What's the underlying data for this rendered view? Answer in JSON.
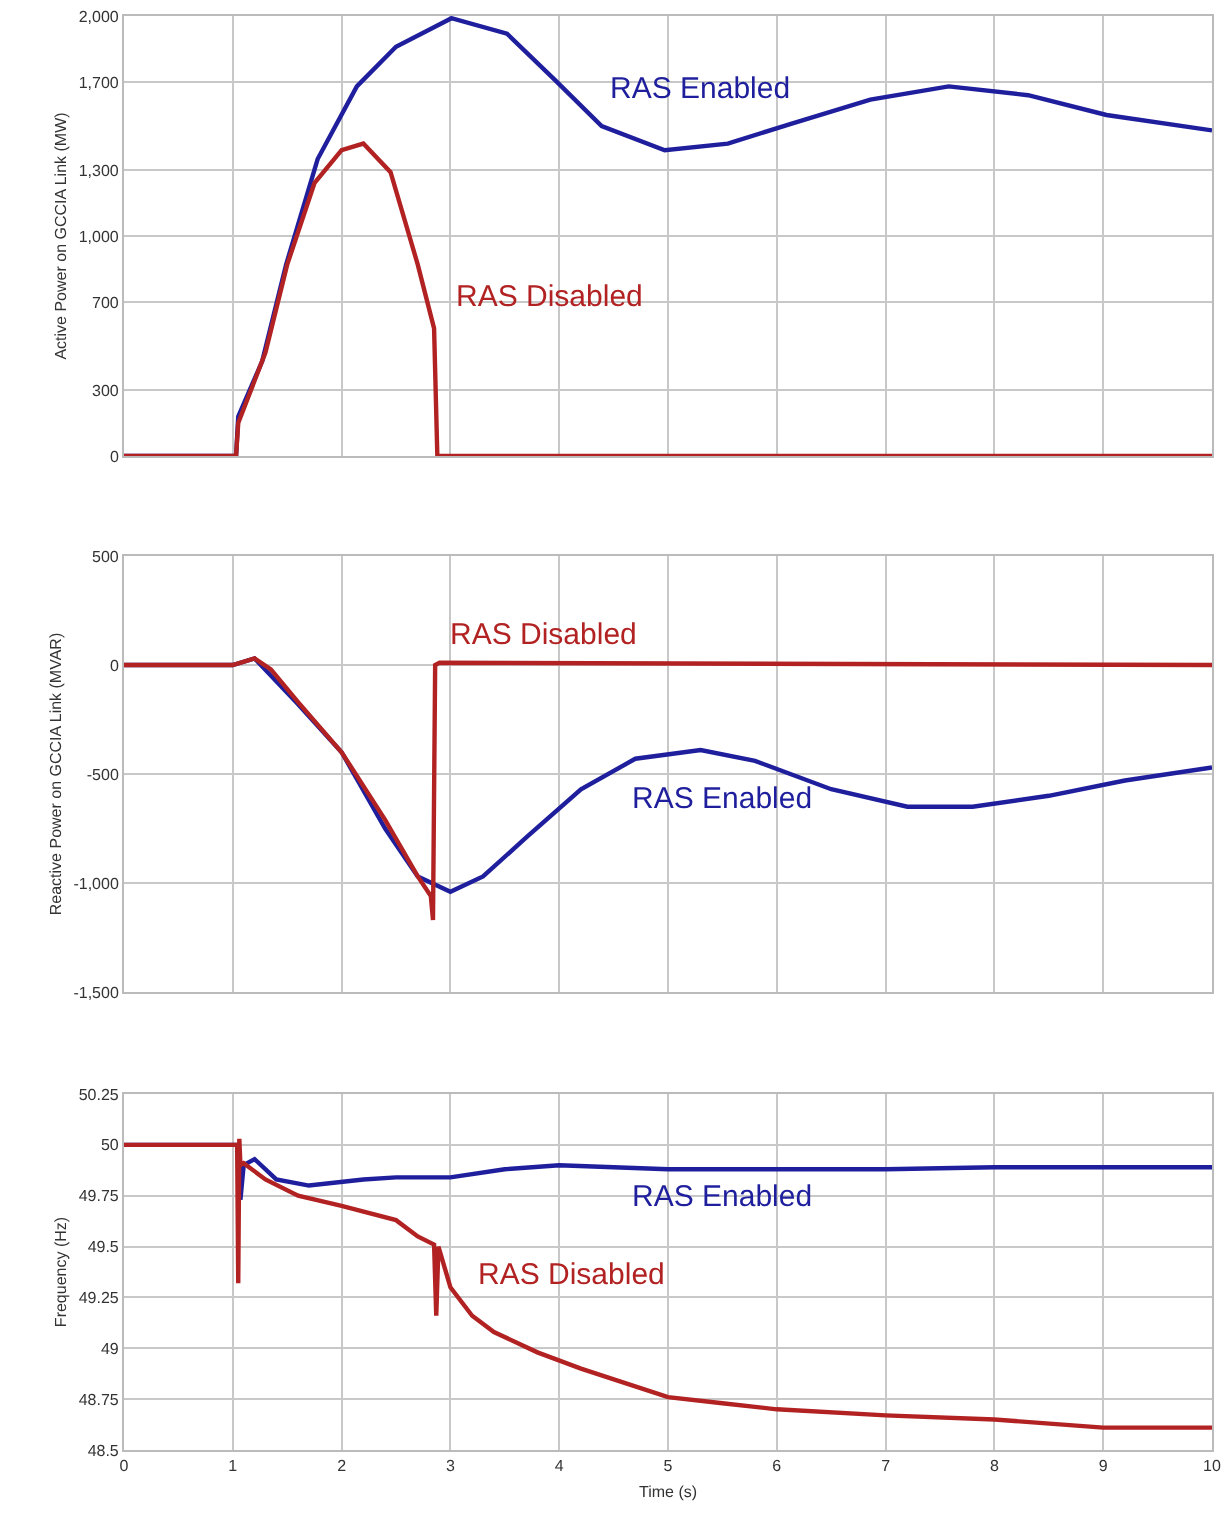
{
  "chart_data": [
    {
      "type": "line",
      "ylabel": "Active Power on GCCIA Link (MW)",
      "xlim": [
        0,
        10
      ],
      "xticks": [
        0,
        1,
        2,
        3,
        4,
        5,
        6,
        7,
        8,
        9,
        10
      ],
      "ylim": [
        0,
        2000
      ],
      "yticks": [
        0,
        300,
        700,
        {
          "value": 1000,
          "label": "1,000"
        },
        {
          "value": 1300,
          "label": "1,300"
        },
        {
          "value": 1700,
          "label": "1,700"
        },
        {
          "value": 2000,
          "label": "2,000"
        }
      ],
      "tick_labels": "y",
      "grid": true,
      "legend": false,
      "series": [
        {
          "name": "RAS Enabled",
          "color": "#1f1f9e",
          "x": [
            0,
            1.03,
            1.05,
            1.27,
            1.49,
            1.78,
            2.14,
            2.5,
            3.01,
            3.52,
            3.96,
            4.39,
            4.97,
            5.55,
            6.13,
            6.86,
            7.58,
            8.31,
            9.03,
            10
          ],
          "values": [
            0,
            0,
            180,
            430,
            870,
            1350,
            1680,
            1860,
            1990,
            1920,
            1710,
            1500,
            1390,
            1420,
            1510,
            1620,
            1680,
            1640,
            1550,
            1480
          ]
        },
        {
          "name": "RAS Disabled",
          "color": "#b22222",
          "x": [
            0,
            1.03,
            1.05,
            1.3,
            1.5,
            1.75,
            2.0,
            2.2,
            2.45,
            2.7,
            2.85,
            2.88,
            10
          ],
          "values": [
            0,
            0,
            150,
            470,
            870,
            1240,
            1390,
            1420,
            1290,
            870,
            580,
            0,
            0
          ]
        }
      ]
    },
    {
      "type": "line",
      "ylabel": "Reactive Power on GCCIA Link (MVAR)",
      "xlim": [
        0,
        10
      ],
      "xticks": [
        0,
        1,
        2,
        3,
        4,
        5,
        6,
        7,
        8,
        9,
        10
      ],
      "ylim": [
        -1500,
        500
      ],
      "yticks": [
        {
          "value": -1500,
          "label": "-1,500"
        },
        {
          "value": -1000,
          "label": "-1,000"
        },
        -500,
        0,
        500
      ],
      "tick_labels": "y",
      "grid": true,
      "legend": false,
      "series": [
        {
          "name": "RAS Enabled",
          "color": "#1f1f9e",
          "x": [
            0,
            1.0,
            1.2,
            1.6,
            2.0,
            2.4,
            2.7,
            3.0,
            3.3,
            3.7,
            4.2,
            4.7,
            5.3,
            5.8,
            6.5,
            7.2,
            7.8,
            8.5,
            9.2,
            10
          ],
          "values": [
            0,
            0,
            30,
            -180,
            -400,
            -750,
            -970,
            -1040,
            -970,
            -790,
            -570,
            -430,
            -390,
            -440,
            -570,
            -650,
            -650,
            -600,
            -530,
            -470
          ]
        },
        {
          "name": "RAS Disabled",
          "color": "#b22222",
          "x": [
            0,
            1.0,
            1.2,
            1.35,
            1.6,
            2.0,
            2.4,
            2.7,
            2.82,
            2.84,
            2.86,
            2.9,
            10
          ],
          "values": [
            0,
            0,
            30,
            -20,
            -170,
            -400,
            -710,
            -970,
            -1060,
            -1170,
            0,
            10,
            0
          ]
        }
      ]
    },
    {
      "type": "line",
      "xlabel": "Time (s)",
      "ylabel": "Frequency (Hz)",
      "xlim": [
        0,
        10
      ],
      "xticks": [
        0,
        1,
        2,
        3,
        4,
        5,
        6,
        7,
        8,
        9,
        10
      ],
      "ylim": [
        48.5,
        50.25
      ],
      "yticks": [
        48.5,
        48.75,
        49,
        49.25,
        49.5,
        49.75,
        50,
        50.25
      ],
      "grid": true,
      "legend": false,
      "series": [
        {
          "name": "RAS Enabled",
          "color": "#1f1f9e",
          "x": [
            0,
            1.05,
            1.07,
            1.1,
            1.2,
            1.4,
            1.7,
            2.2,
            2.5,
            3.0,
            3.5,
            4.0,
            5.0,
            6.0,
            7.0,
            8.0,
            9.0,
            10
          ],
          "values": [
            50,
            50,
            49.73,
            49.9,
            49.93,
            49.83,
            49.8,
            49.83,
            49.84,
            49.84,
            49.88,
            49.9,
            49.88,
            49.88,
            49.88,
            49.89,
            49.89,
            49.89
          ]
        },
        {
          "name": "RAS Disabled",
          "color": "#b22222",
          "x": [
            0,
            1.04,
            1.05,
            1.06,
            1.07,
            1.1,
            1.3,
            1.6,
            2.0,
            2.5,
            2.7,
            2.85,
            2.87,
            2.89,
            3.0,
            3.2,
            3.4,
            3.8,
            4.2,
            4.6,
            5.0,
            5.5,
            6.0,
            7.0,
            8.0,
            9.0,
            10
          ],
          "values": [
            50,
            50,
            49.32,
            50.03,
            49.9,
            49.91,
            49.83,
            49.75,
            49.7,
            49.63,
            49.55,
            49.51,
            49.16,
            49.5,
            49.3,
            49.16,
            49.08,
            48.98,
            48.9,
            48.83,
            48.76,
            48.73,
            48.7,
            48.67,
            48.65,
            48.61,
            48.61
          ]
        }
      ]
    }
  ]
}
